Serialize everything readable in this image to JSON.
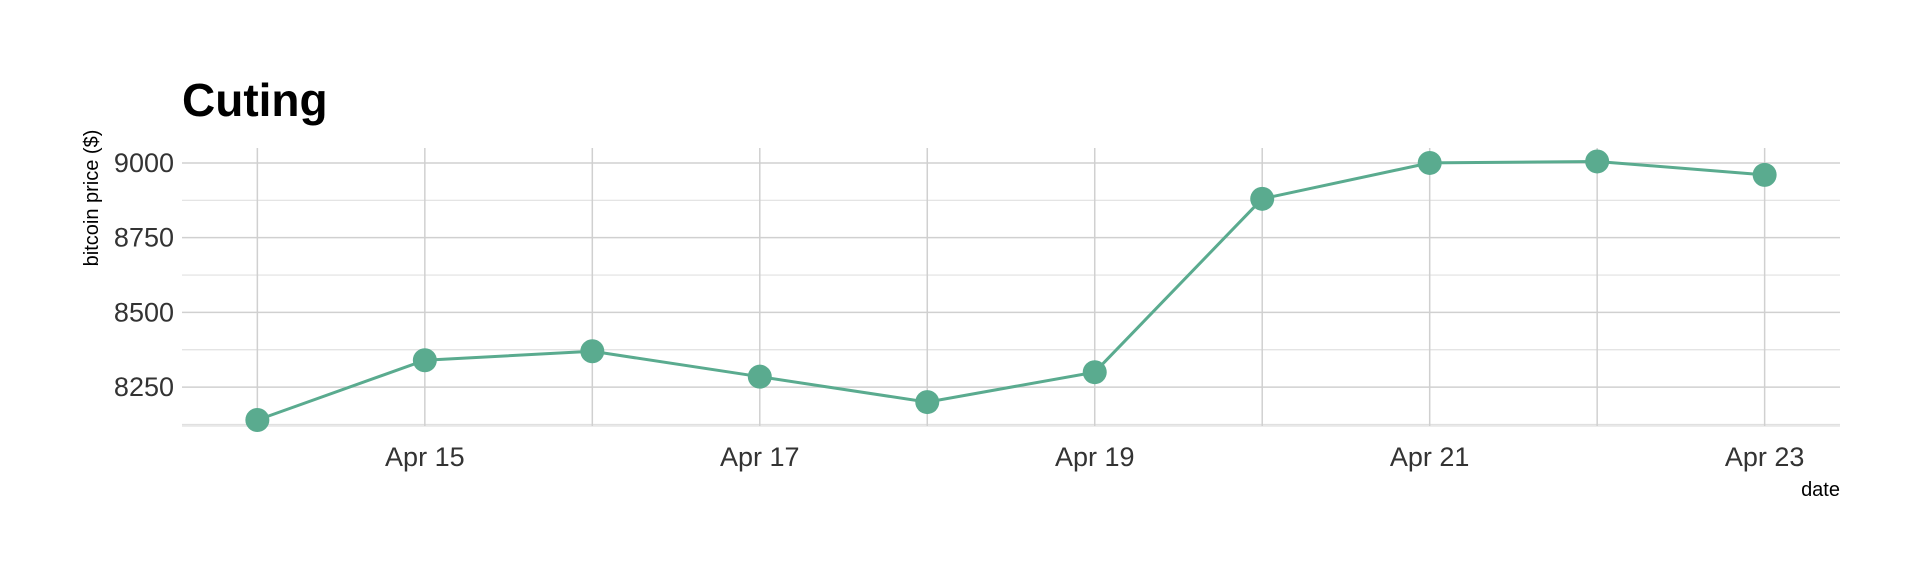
{
  "chart_data": {
    "type": "line",
    "title": "Cuting",
    "xlabel": "date",
    "ylabel": "bitcoin price ($)",
    "x": [
      "2018-04-14",
      "2018-04-15",
      "2018-04-16",
      "2018-04-17",
      "2018-04-18",
      "2018-04-19",
      "2018-04-20",
      "2018-04-21",
      "2018-04-22",
      "2018-04-23"
    ],
    "x_tick_labels": [
      {
        "date": "2018-04-15",
        "label": "Apr 15"
      },
      {
        "date": "2018-04-17",
        "label": "Apr 17"
      },
      {
        "date": "2018-04-19",
        "label": "Apr 19"
      },
      {
        "date": "2018-04-21",
        "label": "Apr 21"
      },
      {
        "date": "2018-04-23",
        "label": "Apr 23"
      }
    ],
    "y_ticks": [
      8250,
      8500,
      8750,
      9000
    ],
    "ylim": [
      8120,
      9050
    ],
    "series": [
      {
        "values": [
          8140,
          8340,
          8370,
          8285,
          8200,
          8300,
          8880,
          9000,
          9005,
          8960
        ]
      }
    ],
    "color": "#5aab8f",
    "grid": true,
    "legend": "none"
  }
}
